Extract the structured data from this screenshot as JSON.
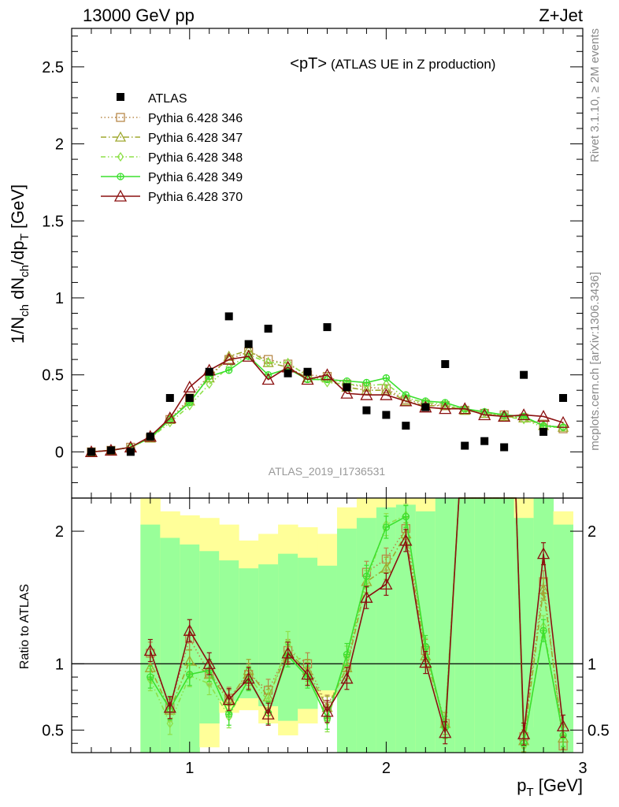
{
  "header": {
    "left": "13000 GeV pp",
    "right": "Z+Jet"
  },
  "side_labels": {
    "top": "Rivet 3.1.10, ≥ 2M events",
    "bottom": "mcplots.cern.ch [arXiv:1306.3436]"
  },
  "analysis_tag": "ATLAS_2019_I1736531",
  "chart_data": [
    {
      "type": "scatter",
      "title": "<pT> (ATLAS UE in Z production)",
      "title_main": "<pT>",
      "title_sub": "(ATLAS UE in Z production)",
      "xlabel": "p_T [GeV]",
      "ylabel": "1/N_ch dN_ch/dp_T [GeV]",
      "xlim": [
        0.4,
        3.0
      ],
      "ylim": [
        -0.3,
        2.75
      ],
      "yticks": [
        0,
        0.5,
        1,
        1.5,
        2,
        2.5
      ],
      "ytick_labels": [
        "0",
        "0.5",
        "1",
        "1.5",
        "2",
        "2.5"
      ],
      "xticks": [
        1,
        2,
        3
      ],
      "xtick_labels": [
        "1",
        "2",
        "3"
      ],
      "legend_position": "top-left",
      "x": [
        0.5,
        0.6,
        0.7,
        0.8,
        0.9,
        1.0,
        1.1,
        1.2,
        1.3,
        1.4,
        1.5,
        1.6,
        1.7,
        1.8,
        1.9,
        2.0,
        2.1,
        2.2,
        2.3,
        2.4,
        2.5,
        2.6,
        2.7,
        2.8,
        2.9
      ],
      "data": {
        "name": "ATLAS",
        "values": [
          0.0,
          0.01,
          0.0,
          0.1,
          0.35,
          0.35,
          0.52,
          0.88,
          0.7,
          0.8,
          0.51,
          0.52,
          0.81,
          0.42,
          0.27,
          0.24,
          0.17,
          0.29,
          0.57,
          0.04,
          0.07,
          0.03,
          0.5,
          0.13,
          0.35
        ]
      },
      "series": [
        {
          "name": "Pythia 6.428 346",
          "color": "#b8894a",
          "marker": "square",
          "dash": "1.5,3",
          "values": [
            0.0,
            0.01,
            0.03,
            0.09,
            0.21,
            0.35,
            0.5,
            0.6,
            0.65,
            0.6,
            0.57,
            0.5,
            0.49,
            0.44,
            0.42,
            0.41,
            0.34,
            0.31,
            0.3,
            0.27,
            0.25,
            0.24,
            0.22,
            0.18,
            0.15
          ]
        },
        {
          "name": "Pythia 6.428 347",
          "color": "#9fa82e",
          "marker": "triangle",
          "dash": "7,3,1.5,3",
          "values": [
            0.0,
            0.01,
            0.03,
            0.09,
            0.21,
            0.33,
            0.48,
            0.62,
            0.66,
            0.58,
            0.55,
            0.48,
            0.48,
            0.42,
            0.4,
            0.4,
            0.33,
            0.3,
            0.3,
            0.27,
            0.25,
            0.23,
            0.22,
            0.17,
            0.16
          ]
        },
        {
          "name": "Pythia 6.428 348",
          "color": "#8ee04a",
          "marker": "diamond",
          "dash": "6,3,1.5,3,1.5,3",
          "values": [
            0.0,
            0.01,
            0.03,
            0.09,
            0.19,
            0.3,
            0.44,
            0.55,
            0.63,
            0.58,
            0.58,
            0.49,
            0.45,
            0.44,
            0.43,
            0.44,
            0.35,
            0.32,
            0.31,
            0.27,
            0.25,
            0.23,
            0.21,
            0.16,
            0.16
          ]
        },
        {
          "name": "Pythia 6.428 349",
          "color": "#3ce02e",
          "marker": "circleplus",
          "dash": "",
          "values": [
            0.0,
            0.01,
            0.03,
            0.09,
            0.21,
            0.32,
            0.49,
            0.53,
            0.62,
            0.5,
            0.54,
            0.47,
            0.47,
            0.46,
            0.45,
            0.48,
            0.37,
            0.33,
            0.32,
            0.28,
            0.26,
            0.24,
            0.23,
            0.17,
            0.16
          ]
        },
        {
          "name": "Pythia 6.428 370",
          "color": "#8b1010",
          "marker": "triangle",
          "dash": "",
          "values": [
            0.0,
            0.01,
            0.03,
            0.1,
            0.22,
            0.42,
            0.53,
            0.6,
            0.62,
            0.47,
            0.55,
            0.47,
            0.5,
            0.38,
            0.37,
            0.37,
            0.33,
            0.29,
            0.28,
            0.28,
            0.24,
            0.23,
            0.24,
            0.23,
            0.19
          ]
        }
      ]
    },
    {
      "type": "scatter",
      "ylabel": "Ratio to ATLAS",
      "xlim": [
        0.4,
        3.0
      ],
      "ylim": [
        0.33,
        2.25
      ],
      "yticks": [
        0.5,
        1,
        2
      ],
      "ytick_labels": [
        "0.5",
        "1",
        "2"
      ],
      "reference_line": 1,
      "x": [
        0.8,
        0.9,
        1.0,
        1.1,
        1.2,
        1.3,
        1.4,
        1.5,
        1.6,
        1.7,
        1.8,
        1.9,
        2.0,
        2.1,
        2.2,
        2.3,
        2.7,
        2.8,
        2.9
      ],
      "bands": {
        "x_edges": [
          0.75,
          0.85,
          0.95,
          1.05,
          1.15,
          1.25,
          1.35,
          1.45,
          1.55,
          1.65,
          1.75,
          1.85,
          1.95,
          2.05,
          2.15,
          2.25,
          2.35,
          2.45,
          2.55,
          2.65,
          2.75,
          2.85,
          2.95
        ],
        "yellow_low": [
          0.33,
          0.33,
          0.33,
          0.37,
          0.63,
          0.65,
          0.55,
          0.46,
          0.55,
          0.75,
          0.33,
          0.33,
          0.33,
          0.33,
          0.33,
          0.33,
          0.33,
          0.33,
          0.33,
          0.33,
          0.52,
          0.33
        ],
        "yellow_high": [
          2.25,
          2.15,
          2.12,
          2.1,
          2.05,
          1.93,
          1.98,
          2.05,
          2.03,
          1.98,
          2.18,
          2.25,
          2.25,
          2.25,
          2.25,
          2.25,
          2.25,
          2.25,
          2.25,
          2.25,
          2.25,
          2.15
        ],
        "green_low": [
          0.33,
          0.33,
          0.33,
          0.55,
          0.72,
          0.74,
          0.68,
          0.57,
          0.66,
          0.8,
          0.33,
          0.33,
          0.33,
          0.33,
          0.33,
          0.33,
          0.33,
          0.33,
          0.33,
          0.33,
          0.33,
          0.33
        ],
        "green_high": [
          2.05,
          1.95,
          1.9,
          1.85,
          1.78,
          1.72,
          1.75,
          1.83,
          1.8,
          1.74,
          2.02,
          2.1,
          2.18,
          2.2,
          2.15,
          2.25,
          2.25,
          2.25,
          2.25,
          2.1,
          2.25,
          2.05
        ]
      },
      "series": [
        {
          "name": "Pythia 6.428 346",
          "values": [
            1.08,
            0.67,
            1.19,
            0.93,
            0.74,
            0.92,
            0.8,
            1.1,
            1.0,
            0.68,
            0.97,
            1.69,
            1.79,
            2.02,
            1.1,
            0.55,
            0.45,
            1.62,
            0.38
          ]
        },
        {
          "name": "Pythia 6.428 347",
          "values": [
            0.97,
            0.65,
            1.02,
            0.92,
            0.72,
            0.95,
            0.75,
            1.09,
            0.95,
            0.67,
            0.97,
            1.62,
            1.72,
            1.98,
            1.06,
            0.55,
            0.42,
            1.56,
            0.44
          ]
        },
        {
          "name": "Pythia 6.428 348",
          "values": [
            0.88,
            0.55,
            0.91,
            0.85,
            0.6,
            0.9,
            0.72,
            1.16,
            0.93,
            0.57,
            1.05,
            1.62,
            2.05,
            2.12,
            1.11,
            0.52,
            0.38,
            1.28,
            0.45
          ]
        },
        {
          "name": "Pythia 6.428 349",
          "values": [
            0.9,
            0.66,
            0.92,
            0.95,
            0.62,
            0.88,
            0.63,
            1.06,
            0.9,
            0.59,
            1.07,
            1.66,
            2.03,
            2.11,
            1.13,
            0.52,
            0.4,
            1.25,
            0.46
          ]
        },
        {
          "name": "Pythia 6.428 370",
          "values": [
            1.1,
            0.67,
            1.25,
            1.0,
            0.73,
            0.89,
            0.62,
            1.08,
            0.92,
            0.64,
            0.89,
            1.5,
            1.6,
            1.93,
            1.01,
            0.48,
            0.47,
            1.83,
            0.53
          ]
        }
      ]
    }
  ]
}
